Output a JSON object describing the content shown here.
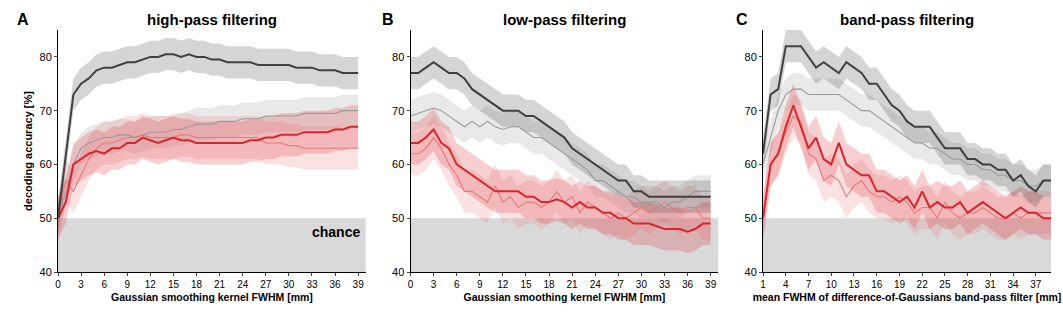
{
  "chart_data": [
    {
      "type": "line",
      "panel": "A",
      "title": "high-pass filtering",
      "x_label": "Gaussian smoothing kernel FWHM [mm]",
      "y_label": "decoding accuracy [%]",
      "xlim": [
        0,
        40
      ],
      "xticks": [
        0,
        3,
        6,
        9,
        12,
        15,
        18,
        21,
        24,
        27,
        30,
        33,
        36,
        39
      ],
      "ylim": [
        40,
        85
      ],
      "yticks": [
        40,
        50,
        60,
        70,
        80
      ],
      "chance_level": 50,
      "annotations": [
        {
          "text": "chance"
        }
      ],
      "x": [
        0,
        1,
        2,
        3,
        4,
        5,
        6,
        7,
        8,
        9,
        10,
        11,
        12,
        13,
        14,
        15,
        16,
        17,
        18,
        19,
        20,
        21,
        22,
        23,
        24,
        25,
        26,
        27,
        28,
        29,
        30,
        31,
        32,
        33,
        34,
        35,
        36,
        37,
        38,
        39
      ],
      "series": [
        {
          "color": "#9a9a9a",
          "line_style": "thin",
          "error": 3,
          "values": [
            50,
            55,
            60,
            63,
            64,
            64.5,
            65,
            65,
            65.5,
            65.5,
            65,
            65.5,
            66,
            66,
            66,
            66.5,
            66.5,
            67,
            67.5,
            67.5,
            67.5,
            68,
            68,
            68,
            68.5,
            68.5,
            68.5,
            69,
            69,
            69,
            69,
            69,
            69.5,
            69.5,
            69.5,
            69.5,
            69.5,
            70,
            70,
            70
          ]
        },
        {
          "color": "#e8797a",
          "line_style": "thin",
          "error": 4,
          "values": [
            50,
            57,
            55,
            58,
            61,
            63,
            64,
            64,
            64.5,
            65,
            65,
            65.5,
            65,
            65,
            65,
            65,
            65.5,
            65.5,
            65,
            65,
            65,
            65,
            65,
            65,
            65,
            65,
            65,
            64,
            64,
            64,
            63.5,
            63.5,
            63,
            63,
            63,
            63,
            63,
            63,
            63,
            63
          ]
        },
        {
          "color": "#d9262e",
          "line_style": "thick",
          "error": 4,
          "values": [
            50,
            53,
            60,
            61,
            62,
            62.5,
            62,
            63,
            63,
            64,
            64,
            65,
            64.5,
            64,
            64.5,
            65,
            64.5,
            64.5,
            64,
            64,
            64,
            64,
            64,
            64,
            64,
            64.5,
            64.5,
            65,
            65,
            65.5,
            65.5,
            65.5,
            66,
            66,
            66,
            66,
            66.5,
            66.5,
            67,
            67
          ]
        },
        {
          "color": "#404040",
          "line_style": "thick",
          "error": 3,
          "values": [
            50,
            62,
            73,
            75,
            76,
            77.5,
            78,
            78,
            78.5,
            79,
            79,
            79.5,
            80,
            80,
            80.5,
            80.5,
            80,
            80.5,
            80,
            80,
            79.5,
            79.5,
            79,
            79,
            79,
            79,
            78.5,
            78.5,
            78.5,
            78.5,
            78.5,
            78,
            78,
            78,
            77.5,
            77.5,
            77.5,
            77,
            77,
            77
          ]
        }
      ]
    },
    {
      "type": "line",
      "panel": "B",
      "title": "low-pass filtering",
      "x_label": "Gaussian smoothing kernel FWHM [mm]",
      "xlim": [
        0,
        40
      ],
      "xticks": [
        0,
        3,
        6,
        9,
        12,
        15,
        18,
        21,
        24,
        27,
        30,
        33,
        36,
        39
      ],
      "ylim": [
        40,
        85
      ],
      "yticks": [
        40,
        50,
        60,
        70,
        80
      ],
      "chance_level": 50,
      "x": [
        0,
        1,
        2,
        3,
        4,
        5,
        6,
        7,
        8,
        9,
        10,
        11,
        12,
        13,
        14,
        15,
        16,
        17,
        18,
        19,
        20,
        21,
        22,
        23,
        24,
        25,
        26,
        27,
        28,
        29,
        30,
        31,
        32,
        33,
        34,
        35,
        36,
        37,
        38,
        39
      ],
      "series": [
        {
          "color": "#9a9a9a",
          "line_style": "thin",
          "error": 3,
          "values": [
            69,
            69.5,
            70,
            70.5,
            70,
            69,
            68,
            67,
            68,
            67,
            68,
            67,
            66.5,
            67,
            67,
            66,
            65,
            65,
            64,
            63,
            62,
            61,
            60,
            59,
            57,
            57,
            56,
            55,
            54,
            54,
            53,
            53,
            53,
            52,
            53,
            53,
            54,
            55,
            55,
            55
          ]
        },
        {
          "color": "#e8797a",
          "line_style": "thin",
          "error": 4,
          "values": [
            62,
            62,
            63,
            65,
            63,
            60,
            58,
            55,
            55,
            54,
            53,
            56,
            53,
            54,
            52,
            53,
            53,
            52,
            53,
            55,
            53,
            54,
            51,
            53,
            52,
            51,
            50,
            51,
            50,
            51,
            52,
            51,
            52,
            53,
            52,
            51,
            52,
            52,
            50,
            50
          ]
        },
        {
          "color": "#d9262e",
          "line_style": "thick",
          "error": 4,
          "values": [
            64,
            64,
            65,
            66.5,
            64,
            63,
            60,
            59,
            58,
            57,
            56,
            55,
            55,
            55,
            55,
            54,
            54,
            53,
            53,
            53.5,
            53,
            52,
            53,
            52,
            52,
            51,
            51,
            50,
            50,
            49,
            49,
            49,
            48.5,
            48,
            48,
            48,
            47.5,
            48,
            49,
            49
          ]
        },
        {
          "color": "#404040",
          "line_style": "thick",
          "error": 3,
          "values": [
            77,
            77,
            78,
            79,
            78,
            77,
            77,
            76,
            74,
            73,
            72,
            71,
            70,
            70,
            70,
            69,
            69,
            68,
            67,
            66,
            65,
            63,
            62,
            61,
            60,
            59,
            58,
            57,
            57,
            55,
            55,
            54,
            54,
            54,
            54,
            54,
            54,
            54,
            54,
            54
          ]
        }
      ]
    },
    {
      "type": "line",
      "panel": "C",
      "title": "band-pass filtering",
      "x_label": "mean FWHM of difference-of-Gaussians band-pass filter [mm]",
      "xlim": [
        1,
        39
      ],
      "xticks": [
        1,
        4,
        7,
        10,
        13,
        16,
        19,
        22,
        25,
        28,
        31,
        34,
        37
      ],
      "ylim": [
        40,
        85
      ],
      "yticks": [
        40,
        50,
        60,
        70,
        80
      ],
      "chance_level": 50,
      "x": [
        1,
        2,
        3,
        4,
        5,
        6,
        7,
        8,
        9,
        10,
        11,
        12,
        13,
        14,
        15,
        16,
        17,
        18,
        19,
        20,
        21,
        22,
        23,
        24,
        25,
        26,
        27,
        28,
        29,
        30,
        31,
        32,
        33,
        34,
        35,
        36,
        37,
        38,
        39
      ],
      "series": [
        {
          "color": "#9a9a9a",
          "line_style": "thin",
          "error": 3,
          "values": [
            60,
            65,
            70,
            73,
            74,
            74,
            73,
            73,
            73,
            73,
            73,
            72,
            71,
            70,
            70,
            69,
            68,
            67,
            66,
            65,
            64,
            64,
            63,
            63,
            62,
            61,
            61,
            60,
            60,
            59,
            59,
            58,
            58,
            57,
            57,
            56,
            56,
            57,
            57
          ]
        },
        {
          "color": "#e8797a",
          "line_style": "thin",
          "error": 4,
          "values": [
            50,
            60,
            62,
            66,
            69,
            68,
            62,
            61,
            57,
            58,
            57,
            54,
            56,
            57,
            55,
            54,
            54,
            53,
            54,
            53,
            51,
            52,
            52,
            50,
            53,
            51,
            50,
            51,
            51,
            52,
            51,
            50,
            50,
            51,
            50,
            51,
            51,
            51,
            51
          ]
        },
        {
          "color": "#d9262e",
          "line_style": "thick",
          "error": 4,
          "values": [
            50,
            60,
            62,
            67,
            71,
            67,
            63,
            65,
            61,
            60,
            64,
            60,
            59,
            58,
            58,
            55,
            55,
            54,
            53,
            54,
            52,
            55,
            52,
            53,
            52,
            52,
            53,
            51,
            52,
            53,
            52,
            51,
            50,
            51,
            52,
            51,
            51,
            50,
            50
          ]
        },
        {
          "color": "#404040",
          "line_style": "thick",
          "error": 3,
          "values": [
            62,
            73,
            74,
            82,
            82,
            82,
            80,
            78,
            79,
            78,
            77,
            79,
            78,
            77,
            75,
            75,
            73,
            71,
            70,
            68,
            67,
            67,
            67,
            65,
            63,
            63,
            63,
            61,
            61,
            60,
            60,
            59,
            59,
            57,
            58,
            56,
            55,
            57,
            57
          ]
        }
      ]
    }
  ]
}
